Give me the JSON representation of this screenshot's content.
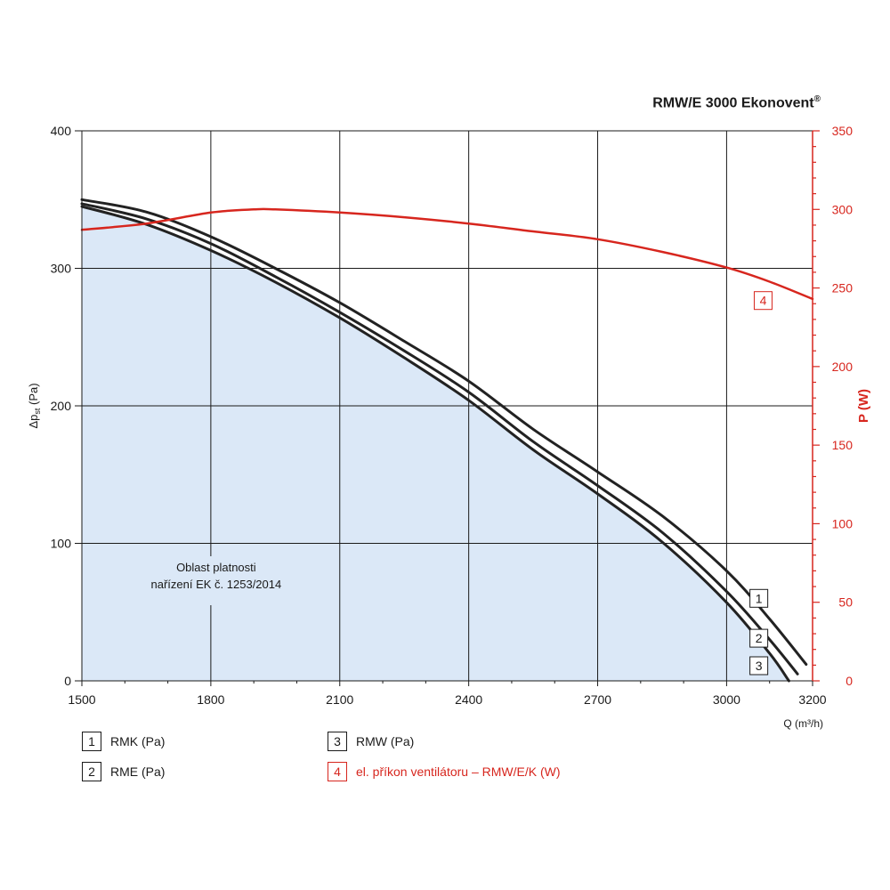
{
  "title": "RMW/E 3000 Ekonovent",
  "title_mark": "®",
  "colors": {
    "black": "#222222",
    "red": "#d7261e",
    "fill": "#dbe8f7",
    "grid": "#1a1a1a"
  },
  "chart_data": {
    "type": "line",
    "x_axis": {
      "label": "Q (m³/h)",
      "range": [
        1500,
        3200
      ],
      "ticks": [
        1500,
        1800,
        2100,
        2400,
        2700,
        3000,
        3200
      ]
    },
    "y_axis_left": {
      "label_main": "Δp",
      "label_sub": "st",
      "label_unit": " (Pa)",
      "range": [
        0,
        400
      ],
      "ticks": [
        0,
        100,
        200,
        300,
        400
      ]
    },
    "y_axis_right": {
      "label": "P (W)",
      "range": [
        0,
        350
      ],
      "ticks": [
        0,
        50,
        100,
        150,
        200,
        250,
        300,
        350
      ]
    },
    "region_label": [
      "Oblast platnosti",
      "nařízení EK č. 1253/2014"
    ],
    "series": [
      {
        "id": "1",
        "name": "RMK (Pa)",
        "axis": "left",
        "x": [
          1500,
          1650,
          1800,
          1950,
          2100,
          2250,
          2400,
          2550,
          2700,
          2850,
          3000,
          3100,
          3185
        ],
        "y": [
          350,
          341,
          323,
          300,
          275,
          247,
          218,
          183,
          152,
          120,
          80,
          45,
          12
        ]
      },
      {
        "id": "2",
        "name": "RME (Pa)",
        "axis": "left",
        "x": [
          1500,
          1650,
          1800,
          1950,
          2100,
          2250,
          2400,
          2550,
          2700,
          2850,
          3000,
          3100,
          3165
        ],
        "y": [
          347,
          336,
          318,
          294,
          268,
          240,
          210,
          174,
          142,
          108,
          65,
          30,
          5
        ]
      },
      {
        "id": "3",
        "name": "RMW (Pa)",
        "axis": "left",
        "x": [
          1500,
          1650,
          1800,
          1950,
          2100,
          2250,
          2400,
          2550,
          2700,
          2850,
          3000,
          3100,
          3145
        ],
        "y": [
          345,
          332,
          313,
          290,
          264,
          235,
          204,
          168,
          136,
          101,
          57,
          20,
          0
        ]
      },
      {
        "id": "4",
        "name": "el. příkon ventilátoru – RMW/E/K (W)",
        "axis": "right",
        "x": [
          1500,
          1650,
          1800,
          1900,
          1950,
          2100,
          2250,
          2400,
          2550,
          2700,
          2850,
          3000,
          3100,
          3200
        ],
        "y": [
          287,
          291,
          298,
          300,
          300,
          298,
          295,
          291,
          286,
          281,
          273,
          263,
          254,
          243
        ]
      }
    ]
  }
}
